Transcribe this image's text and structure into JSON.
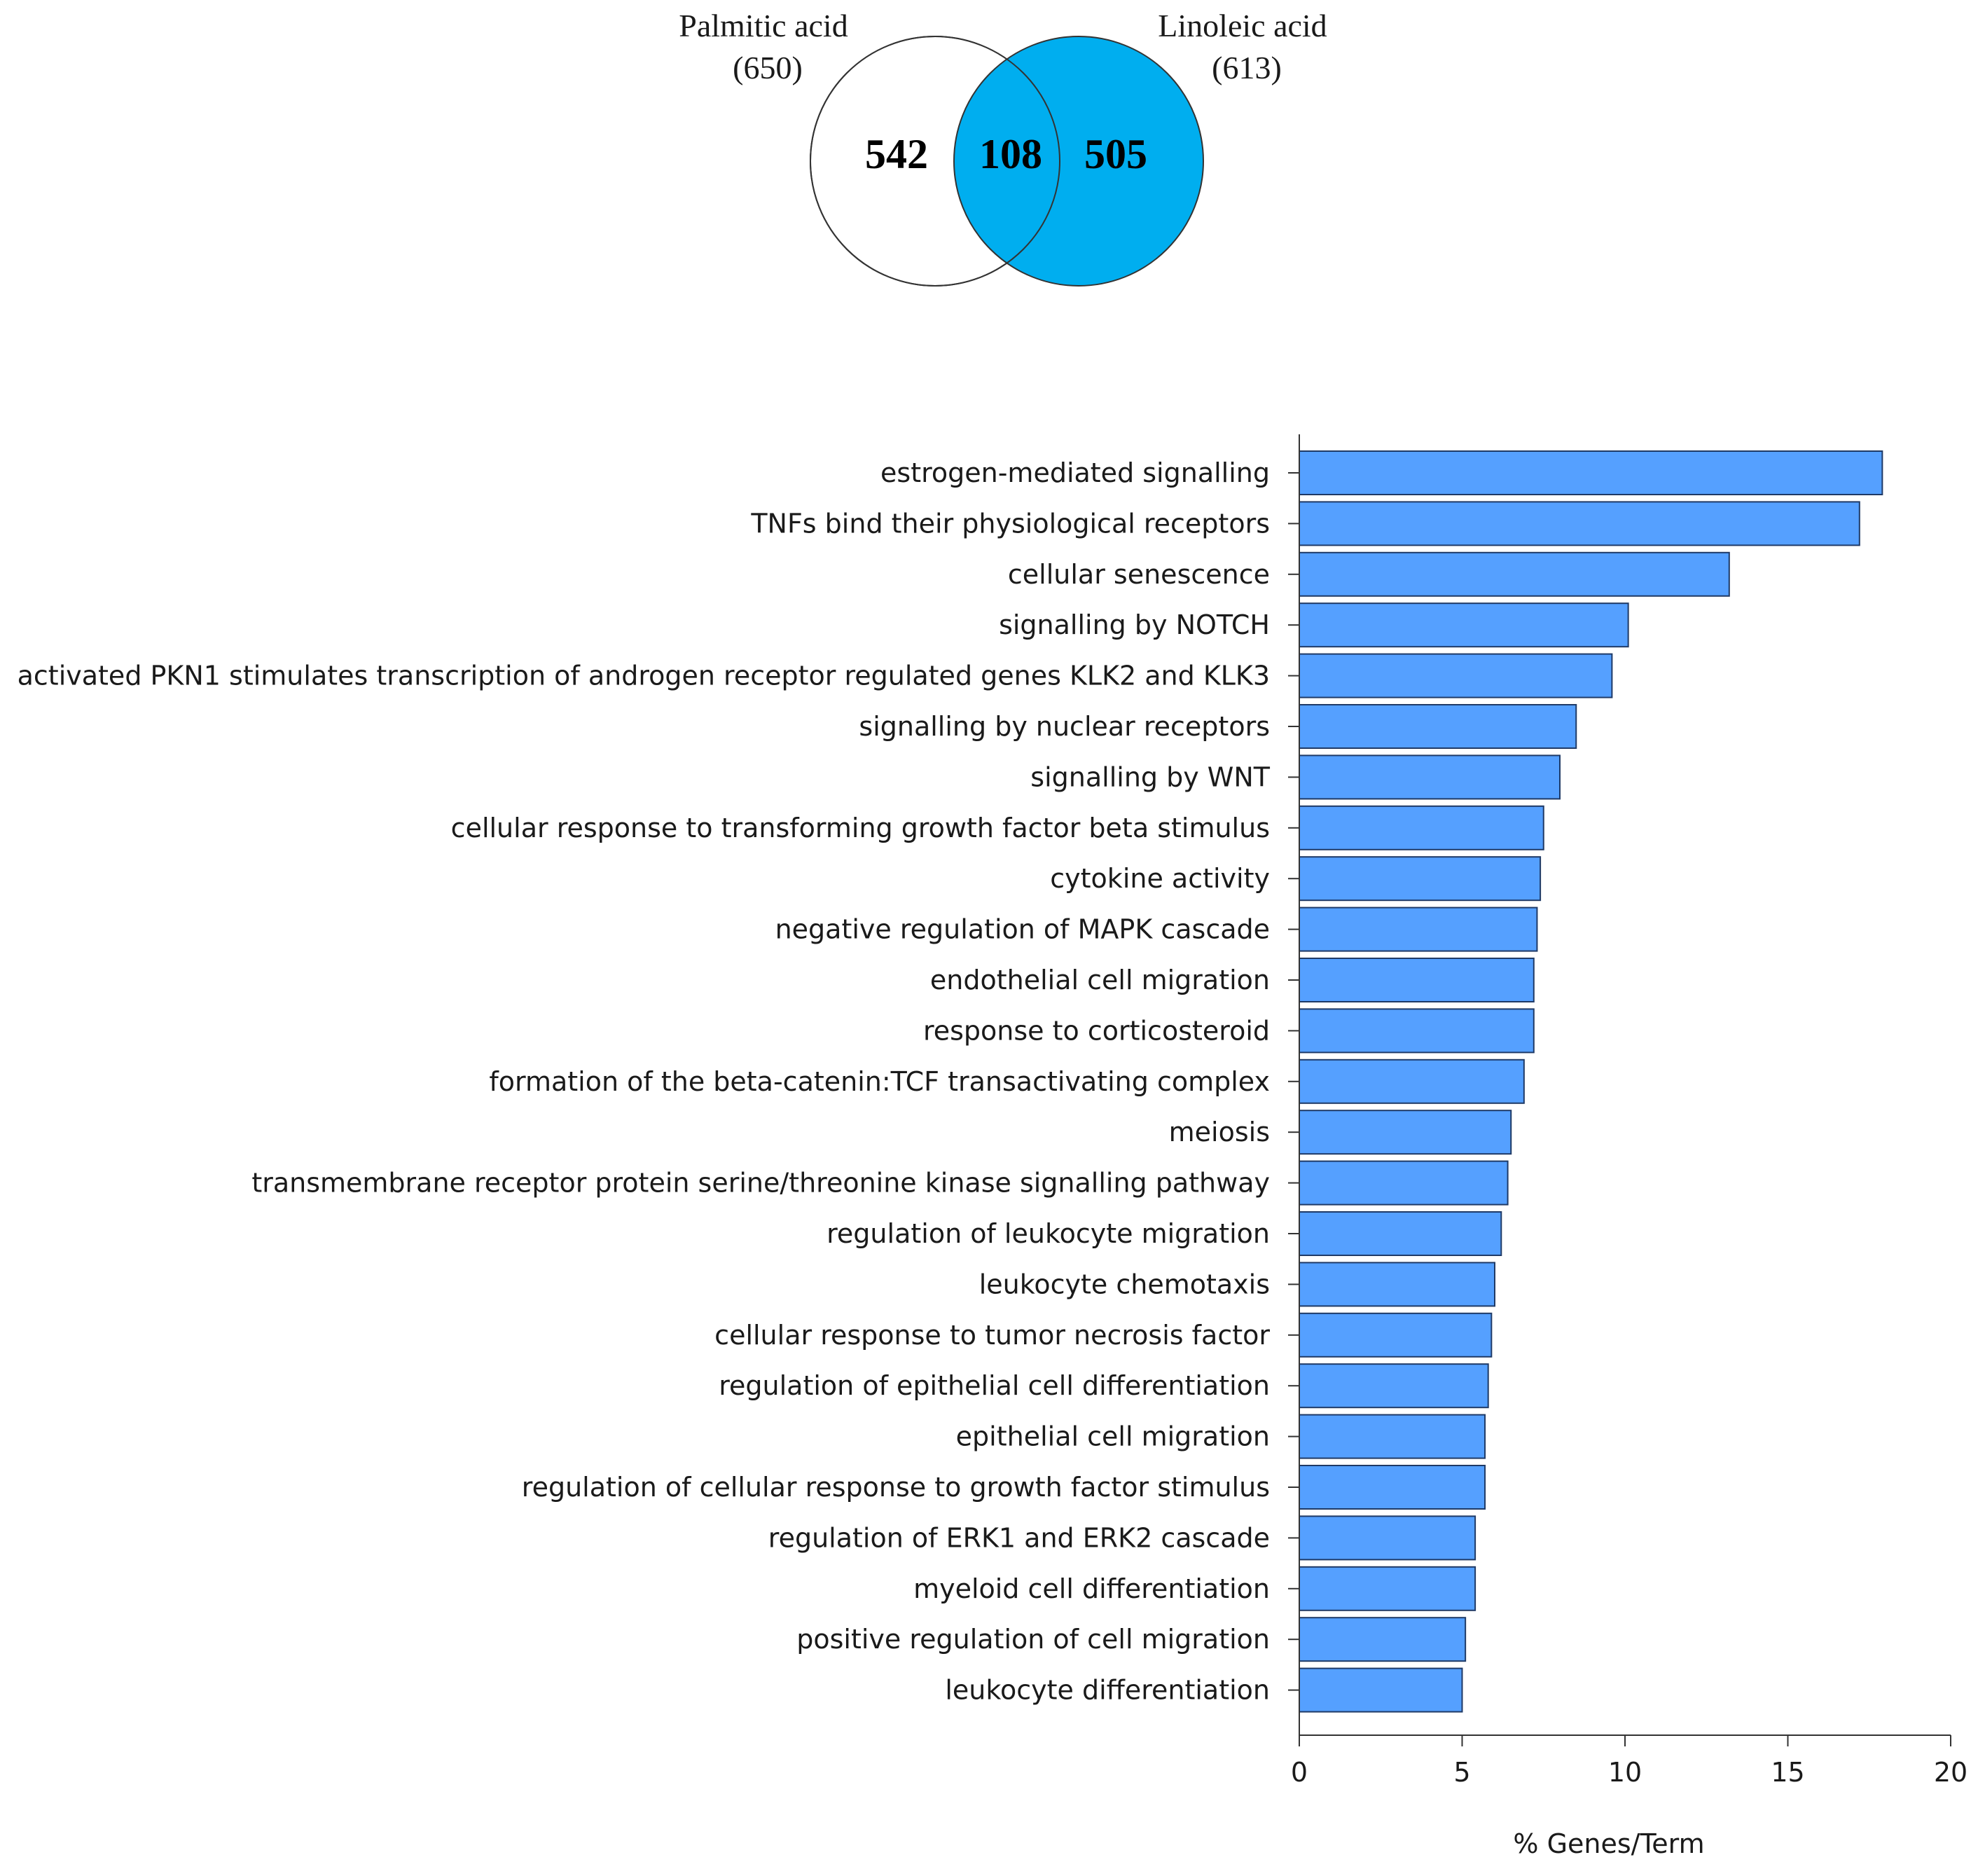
{
  "venn": {
    "left_set": {
      "name": "Palmitic acid",
      "total": "(650)",
      "unique": "542"
    },
    "right_set": {
      "name": "Linoleic acid",
      "total": "(613)",
      "unique": "505"
    },
    "intersection": "108",
    "colors": {
      "left_fill": "#ffffff",
      "right_fill": "#00aeef",
      "stroke": "#333333"
    }
  },
  "chart_data": {
    "type": "bar",
    "orientation": "horizontal",
    "xlabel": "% Genes/Term",
    "xlim": [
      0,
      20
    ],
    "xticks": [
      "0",
      "5",
      "10",
      "15",
      "20"
    ],
    "bar_color": "#55a0ff",
    "categories": [
      "estrogen-mediated signalling",
      "TNFs bind their physiological receptors",
      "cellular senescence",
      "signalling by NOTCH",
      "activated PKN1 stimulates transcription of androgen receptor regulated genes KLK2 and KLK3",
      "signalling by nuclear receptors",
      "signalling by WNT",
      "cellular response to transforming growth factor beta stimulus",
      "cytokine activity",
      "negative regulation of MAPK cascade",
      "endothelial cell migration",
      "response to corticosteroid",
      "formation of the beta-catenin:TCF transactivating complex",
      "meiosis",
      "transmembrane receptor protein serine/threonine kinase signalling pathway",
      "regulation of leukocyte migration",
      "leukocyte chemotaxis",
      "cellular response to tumor necrosis factor",
      "regulation of epithelial cell differentiation",
      "epithelial cell migration",
      "regulation of cellular response to growth factor stimulus",
      "regulation of ERK1 and ERK2 cascade",
      "myeloid cell differentiation",
      "positive regulation of cell migration",
      "leukocyte differentiation"
    ],
    "values": [
      17.9,
      17.2,
      13.2,
      10.1,
      9.6,
      8.5,
      8.0,
      7.5,
      7.4,
      7.3,
      7.2,
      7.2,
      6.9,
      6.5,
      6.4,
      6.2,
      6.0,
      5.9,
      5.8,
      5.7,
      5.7,
      5.4,
      5.4,
      5.1,
      5.0
    ]
  }
}
